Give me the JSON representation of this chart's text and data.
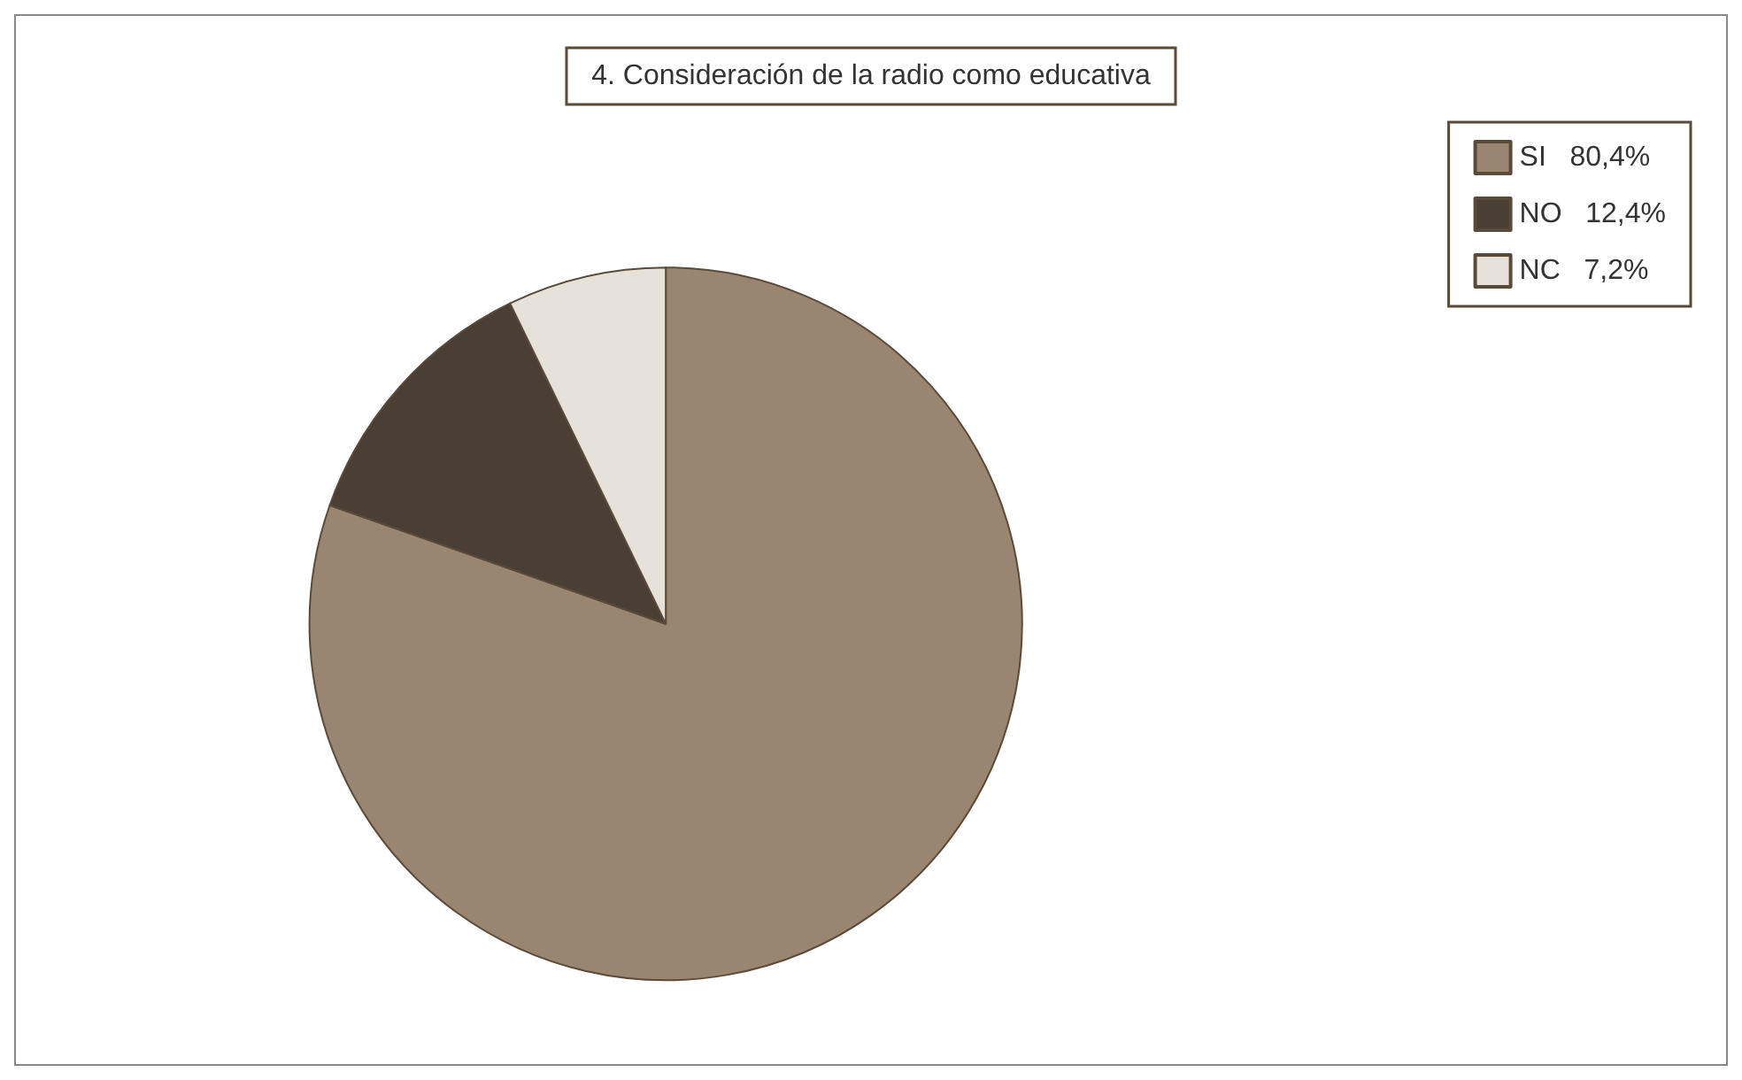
{
  "chart_data": {
    "type": "pie",
    "title": "4. Consideración de la radio como educativa",
    "categories": [
      "SI",
      "NO",
      "NC"
    ],
    "values": [
      80.4,
      12.4,
      7.2
    ],
    "value_labels": [
      "80,4%",
      "12,4%",
      "7,2%"
    ],
    "colors": [
      "#9a8670",
      "#4a3f35",
      "#e6e2da"
    ],
    "legend": "top right"
  }
}
